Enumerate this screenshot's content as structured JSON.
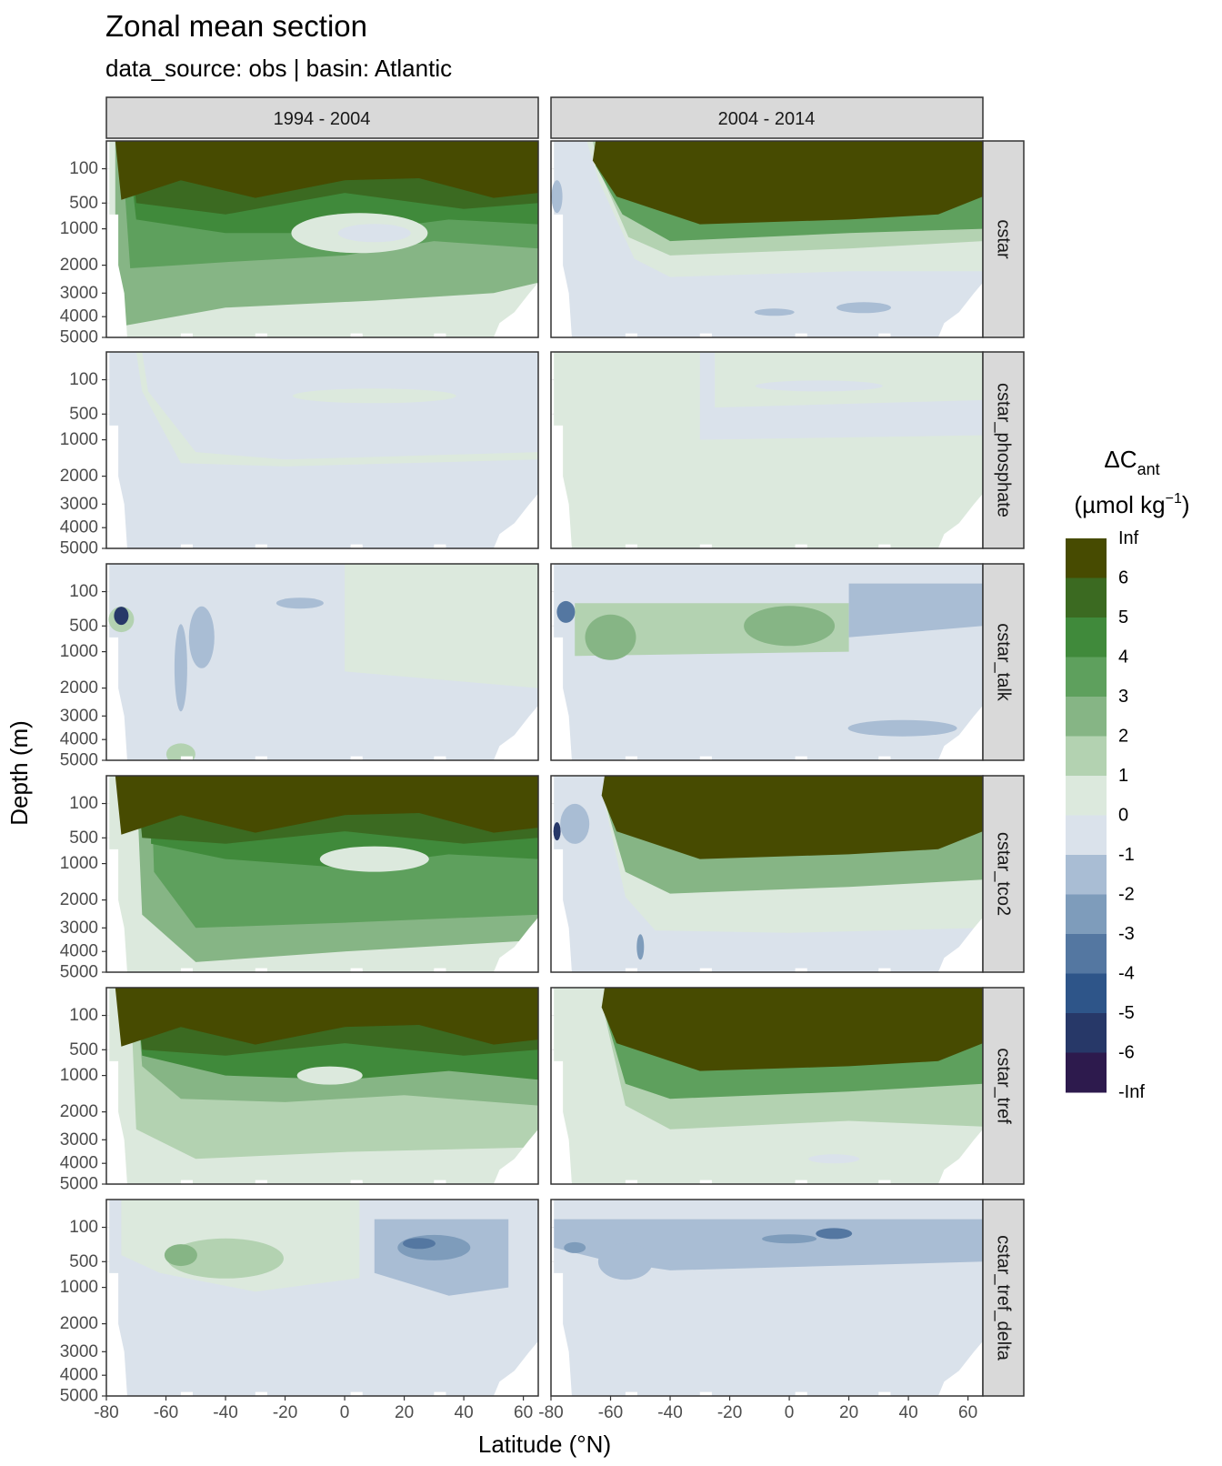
{
  "title": "Zonal mean section",
  "subtitle": "data_source:  obs | basin: Atlantic",
  "chart_data": {
    "type": "heatmap",
    "facet_columns": [
      "1994 - 2004",
      "2004 - 2014"
    ],
    "facet_rows": [
      "cstar",
      "cstar_phosphate",
      "cstar_talk",
      "cstar_tco2",
      "cstar_tref",
      "cstar_tref_delta"
    ],
    "xlabel": "Latitude (°N)",
    "ylabel": "Depth (m)",
    "x_ticks": [
      "-80",
      "-60",
      "-40",
      "-20",
      "0",
      "20",
      "40",
      "60"
    ],
    "xlim": [
      -80,
      65
    ],
    "y_ticks": [
      "100",
      "500",
      "1000",
      "2000",
      "3000",
      "4000",
      "5000"
    ],
    "y_tick_values": [
      100,
      500,
      1000,
      2000,
      3000,
      4000,
      5000
    ],
    "y_scale": "reversed sqrt",
    "ylim": [
      0,
      5000
    ],
    "grid": true,
    "legend": {
      "title_main": "ΔC",
      "title_sub": "ant",
      "units_pre": "(µmol kg",
      "units_sup": "−1",
      "units_post": ")",
      "placement": "right",
      "breaks": [
        "Inf",
        "6",
        "5",
        "4",
        "3",
        "2",
        "1",
        "0",
        "-1",
        "-2",
        "-3",
        "-4",
        "-5",
        "-6",
        "-Inf"
      ],
      "colors": [
        "#474b01",
        "#3b6a21",
        "#408a3b",
        "#5ea05d",
        "#86b585",
        "#b3d2b1",
        "#dce9dd",
        "#dae2eb",
        "#a9bdd4",
        "#7e9cbb",
        "#5477a1",
        "#2e5589",
        "#273868",
        "#2d1a4d"
      ]
    },
    "panels": [
      {
        "row": "cstar",
        "col": "1994 - 2004",
        "surface_class": ">6",
        "summary": "Strong positive ΔCant (>6) above ~500 m, 0 to 4 below; -1 to -2 pocket near 10°N at 1000 m"
      },
      {
        "row": "cstar",
        "col": "2004 - 2014",
        "surface_class": ">6",
        "summary": "Strong positive (>6) above ~800 m north of 55°S, 0 to -1 in deep waters, -1 to -2 patches near 4000 m"
      },
      {
        "row": "cstar_phosphate",
        "col": "1994 - 2004",
        "surface_class": "-1 to 0",
        "summary": "Near zero everywhere (-1 to 1)"
      },
      {
        "row": "cstar_phosphate",
        "col": "2004 - 2014",
        "surface_class": "0 to 1",
        "summary": "Near zero everywhere (-1 to 1)"
      },
      {
        "row": "cstar_talk",
        "col": "1994 - 2004",
        "surface_class": "0 to 1",
        "summary": "Mostly -1 to 1, strong negative spot near 75°S at 500 m, -1 to -2 bands near 50°S"
      },
      {
        "row": "cstar_talk",
        "col": "2004 - 2014",
        "surface_class": "-1 to 0",
        "summary": "1 to 3 between 70°S and 20°N at 500 m, -1 to -2 north of 20°N at 300 m and at depth"
      },
      {
        "row": "cstar_tco2",
        "col": "1994 - 2004",
        "surface_class": ">6",
        "summary": "Strong positive (>6) above ~500 m, 1 to 4 below"
      },
      {
        "row": "cstar_tco2",
        "col": "2004 - 2014",
        "surface_class": ">6",
        "summary": "Strong positive (>6) above ~800 m, -1 to -3 near 65°S, 0 to 1 in deep waters"
      },
      {
        "row": "cstar_tref",
        "col": "1994 - 2004",
        "surface_class": ">6",
        "summary": "Strong positive (>6) above ~500 m, 1 to 4 below"
      },
      {
        "row": "cstar_tref",
        "col": "2004 - 2014",
        "surface_class": ">6",
        "summary": "Strong positive (>6) above ~800 m, 0 to 2 below"
      },
      {
        "row": "cstar_tref_delta",
        "col": "1994 - 2004",
        "surface_class": "0 to 1",
        "summary": "1 to 3 in upper 1000 m south of 0°, -1 to -3 in upper 1000 m north of 15°N, -1 to 0 below"
      },
      {
        "row": "cstar_tref_delta",
        "col": "2004 - 2014",
        "surface_class": "-1 to 0",
        "summary": "-1 to -3 in upper 500 m, -1 to 0 below"
      }
    ]
  }
}
